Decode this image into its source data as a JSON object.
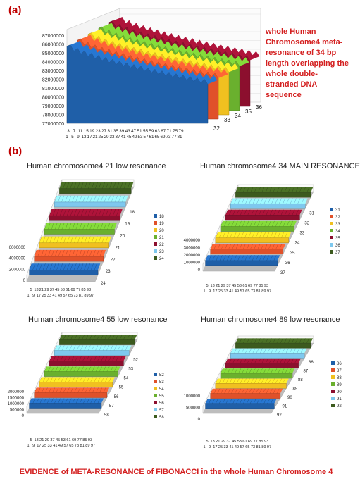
{
  "panel_a_label": "(a)",
  "panel_b_label": "(b)",
  "description": "whole Human Chromosome4 meta-resonance of 34 bp length overlapping the whole double-stranded DNA sequence",
  "footer": "EVIDENCE of META-RESONANCE of FIBONACCI in the whole Human Chromosome 4",
  "colors": [
    "#1f5fa8",
    "#e0512a",
    "#f0c020",
    "#6ab02e",
    "#8c0f2e",
    "#7ec8ee",
    "#3c5a1e"
  ],
  "chart_data": [
    {
      "type": "area",
      "panel": "a",
      "title": "",
      "y_ticks": [
        "87000000",
        "86000000",
        "85000000",
        "84000000",
        "83000000",
        "82000000",
        "81000000",
        "80000000",
        "79000000",
        "78000000",
        "77000000"
      ],
      "ylim": [
        77000000,
        87000000
      ],
      "x_ticks_top": [
        "3",
        "7",
        "11",
        "15",
        "19",
        "23",
        "27",
        "31",
        "35",
        "39",
        "43",
        "47",
        "51",
        "55",
        "59",
        "63",
        "67",
        "71",
        "75",
        "79"
      ],
      "x_ticks_bottom": [
        "1",
        "5",
        "9",
        "13",
        "17",
        "21",
        "25",
        "29",
        "33",
        "37",
        "41",
        "45",
        "49",
        "53",
        "57",
        "61",
        "65",
        "69",
        "73",
        "77",
        "81"
      ],
      "depth_labels": [
        "32",
        "33",
        "34",
        "35",
        "36"
      ],
      "series": [
        {
          "name": "32",
          "start": 86000000,
          "end": 81700000
        },
        {
          "name": "33",
          "start": 86200000,
          "end": 81900000
        },
        {
          "name": "34",
          "start": 86400000,
          "end": 82100000
        },
        {
          "name": "35",
          "start": 86600000,
          "end": 82300000
        },
        {
          "name": "36",
          "start": 86800000,
          "end": 82500000
        }
      ]
    },
    {
      "type": "area",
      "panel": "b1",
      "title": "Human chromosome4  21  low resonance",
      "y_ticks": [
        "6000000",
        "4000000",
        "2000000",
        "0"
      ],
      "x_ticks_top": [
        "5",
        "13",
        "21",
        "29",
        "37",
        "45",
        "53",
        "61",
        "69",
        "77",
        "85",
        "93"
      ],
      "x_ticks_bottom": [
        "1",
        "9",
        "17",
        "25",
        "33",
        "41",
        "49",
        "57",
        "65",
        "73",
        "81",
        "89",
        "97"
      ],
      "depth_labels": [
        "18",
        "19",
        "20",
        "21",
        "22",
        "23",
        "24"
      ],
      "legend": [
        "18",
        "19",
        "20",
        "21",
        "22",
        "23",
        "24"
      ]
    },
    {
      "type": "area",
      "panel": "b2",
      "title": "Human chromosome4  34 MAIN RESONANCE",
      "y_ticks": [
        "4000000",
        "3000000",
        "2000000",
        "1000000",
        "0"
      ],
      "x_ticks_top": [
        "5",
        "13",
        "21",
        "29",
        "37",
        "45",
        "53",
        "61",
        "69",
        "77",
        "85",
        "93"
      ],
      "x_ticks_bottom": [
        "1",
        "9",
        "17",
        "25",
        "33",
        "41",
        "49",
        "57",
        "65",
        "73",
        "81",
        "89",
        "97"
      ],
      "depth_labels": [
        "31",
        "32",
        "33",
        "34",
        "35",
        "36",
        "37"
      ],
      "legend": [
        "31",
        "32",
        "33",
        "34",
        "35",
        "36",
        "37"
      ]
    },
    {
      "type": "area",
      "panel": "b3",
      "title": "Human chromosome4  55  low resonance",
      "y_ticks": [
        "2000000",
        "1500000",
        "1000000",
        "500000",
        "0"
      ],
      "x_ticks_top": [
        "5",
        "13",
        "21",
        "29",
        "37",
        "45",
        "53",
        "61",
        "69",
        "77",
        "85",
        "93"
      ],
      "x_ticks_bottom": [
        "1",
        "9",
        "17",
        "25",
        "33",
        "41",
        "49",
        "57",
        "65",
        "73",
        "81",
        "89",
        "97"
      ],
      "depth_labels": [
        "52",
        "53",
        "54",
        "55",
        "56",
        "57",
        "58"
      ],
      "legend": [
        "52",
        "53",
        "54",
        "55",
        "56",
        "57",
        "58"
      ]
    },
    {
      "type": "area",
      "panel": "b4",
      "title": "Human chromosome4  89  low resonance",
      "y_ticks": [
        "1000000",
        "500000",
        "0"
      ],
      "x_ticks_top": [
        "5",
        "13",
        "21",
        "29",
        "37",
        "45",
        "53",
        "61",
        "69",
        "77",
        "85",
        "93"
      ],
      "x_ticks_bottom": [
        "1",
        "9",
        "17",
        "25",
        "33",
        "41",
        "49",
        "57",
        "65",
        "73",
        "81",
        "89",
        "97"
      ],
      "depth_labels": [
        "86",
        "87",
        "88",
        "89",
        "90",
        "91",
        "92"
      ],
      "legend": [
        "86",
        "87",
        "88",
        "89",
        "90",
        "91",
        "92"
      ]
    }
  ]
}
